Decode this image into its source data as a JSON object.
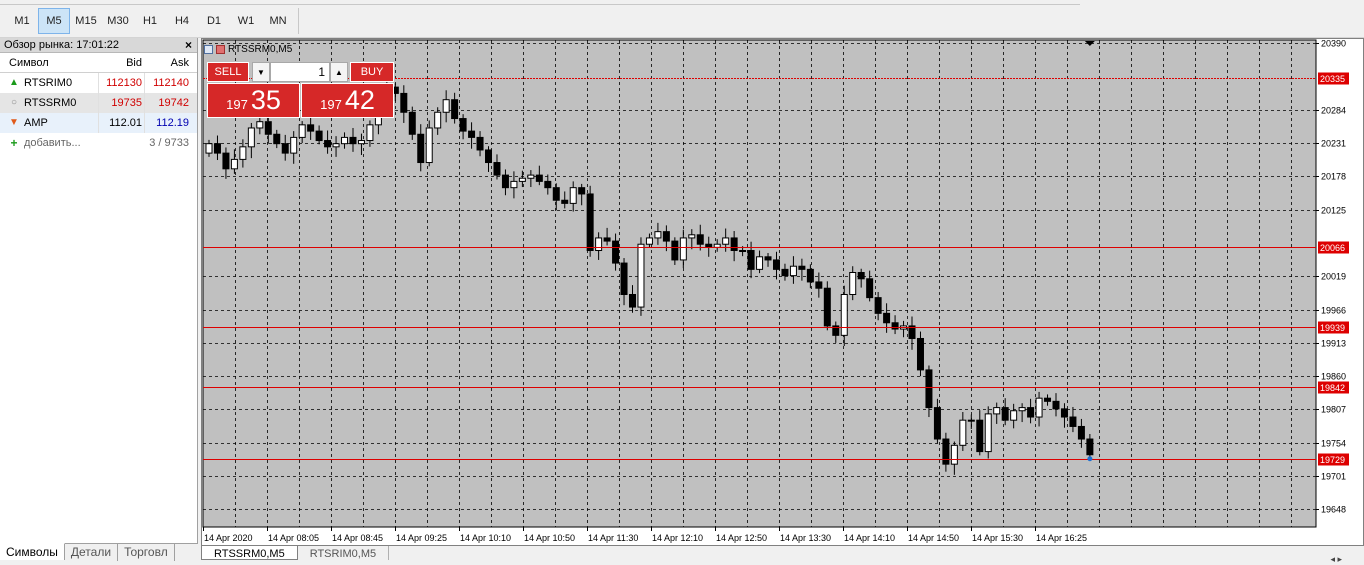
{
  "toolbar": {
    "timeframes": [
      "M1",
      "M5",
      "M15",
      "M30",
      "H1",
      "H4",
      "D1",
      "W1",
      "MN"
    ],
    "active_timeframe": "M5"
  },
  "market_watch": {
    "title": "Обзор рынка: 17:01:22",
    "columns": {
      "symbol": "Символ",
      "bid": "Bid",
      "ask": "Ask"
    },
    "rows": [
      {
        "symbol": "RTSRIM0",
        "bid": "112130",
        "ask": "112140",
        "trend": "up"
      },
      {
        "symbol": "RTSSRM0",
        "bid": "19735",
        "ask": "19742",
        "trend": "neutral"
      },
      {
        "symbol": "AMP",
        "bid": "112.01",
        "ask": "112.19",
        "trend": "down"
      }
    ],
    "add_label": "добавить...",
    "count": "3 / 9733",
    "tabs": [
      "Символы",
      "Детали",
      "Торговл"
    ]
  },
  "chart": {
    "title": "RTSSRM0,M5",
    "trade_panel": {
      "sell_label": "SELL",
      "buy_label": "BUY",
      "volume": "1",
      "sell_prefix": "197",
      "sell_big": "35",
      "buy_prefix": "197",
      "buy_big": "42"
    },
    "tabs": [
      "RTSSRM0,M5",
      "RTSRIM0,M5"
    ]
  },
  "colors": {
    "bull": "#ffffff",
    "bear": "#000000",
    "bg": "#c0c0c0",
    "level": "#dd0000"
  },
  "chart_data": {
    "type": "candlestick",
    "symbol": "RTSSRM0",
    "timeframe": "M5",
    "ylim": [
      19620,
      20395
    ],
    "y_ticks": [
      20390,
      20284,
      20231,
      20178,
      20125,
      20019,
      19966,
      19913,
      19860,
      19807,
      19754,
      19701,
      19648
    ],
    "x_tick_labels": [
      "14 Apr 2020",
      "14 Apr 08:05",
      "14 Apr 08:45",
      "14 Apr 09:25",
      "14 Apr 10:10",
      "14 Apr 10:50",
      "14 Apr 11:30",
      "14 Apr 12:10",
      "14 Apr 12:50",
      "14 Apr 13:30",
      "14 Apr 14:10",
      "14 Apr 14:50",
      "14 Apr 15:30",
      "14 Apr 16:25"
    ],
    "levels": [
      20335,
      20066,
      19939,
      19842,
      19729
    ],
    "level_labels": [
      "20335",
      "20066",
      "19939",
      "19842",
      "19729"
    ],
    "grid": true,
    "close_series": [
      20230,
      20215,
      20190,
      20205,
      20225,
      20255,
      20265,
      20245,
      20230,
      20215,
      20240,
      20260,
      20250,
      20235,
      20225,
      20230,
      20240,
      20230,
      20235,
      20260,
      20290,
      20320,
      20310,
      20280,
      20245,
      20200,
      20255,
      20280,
      20300,
      20270,
      20250,
      20240,
      20220,
      20200,
      20180,
      20160,
      20170,
      20175,
      20180,
      20170,
      20160,
      20140,
      20135,
      20160,
      20150,
      20060,
      20080,
      20075,
      20040,
      19990,
      19970,
      20070,
      20080,
      20090,
      20075,
      20045,
      20080,
      20085,
      20070,
      20065,
      20070,
      20080,
      20060,
      20060,
      20030,
      20050,
      20045,
      20030,
      20020,
      20035,
      20030,
      20010,
      20000,
      19940,
      19925,
      19990,
      20025,
      20015,
      19985,
      19960,
      19945,
      19935,
      19940,
      19920,
      19870,
      19810,
      19760,
      19720,
      19750,
      19790,
      19790,
      19740,
      19800,
      19810,
      19790,
      19805,
      19810,
      19795,
      19825,
      19820,
      19808,
      19795,
      19780,
      19760,
      19735
    ]
  }
}
